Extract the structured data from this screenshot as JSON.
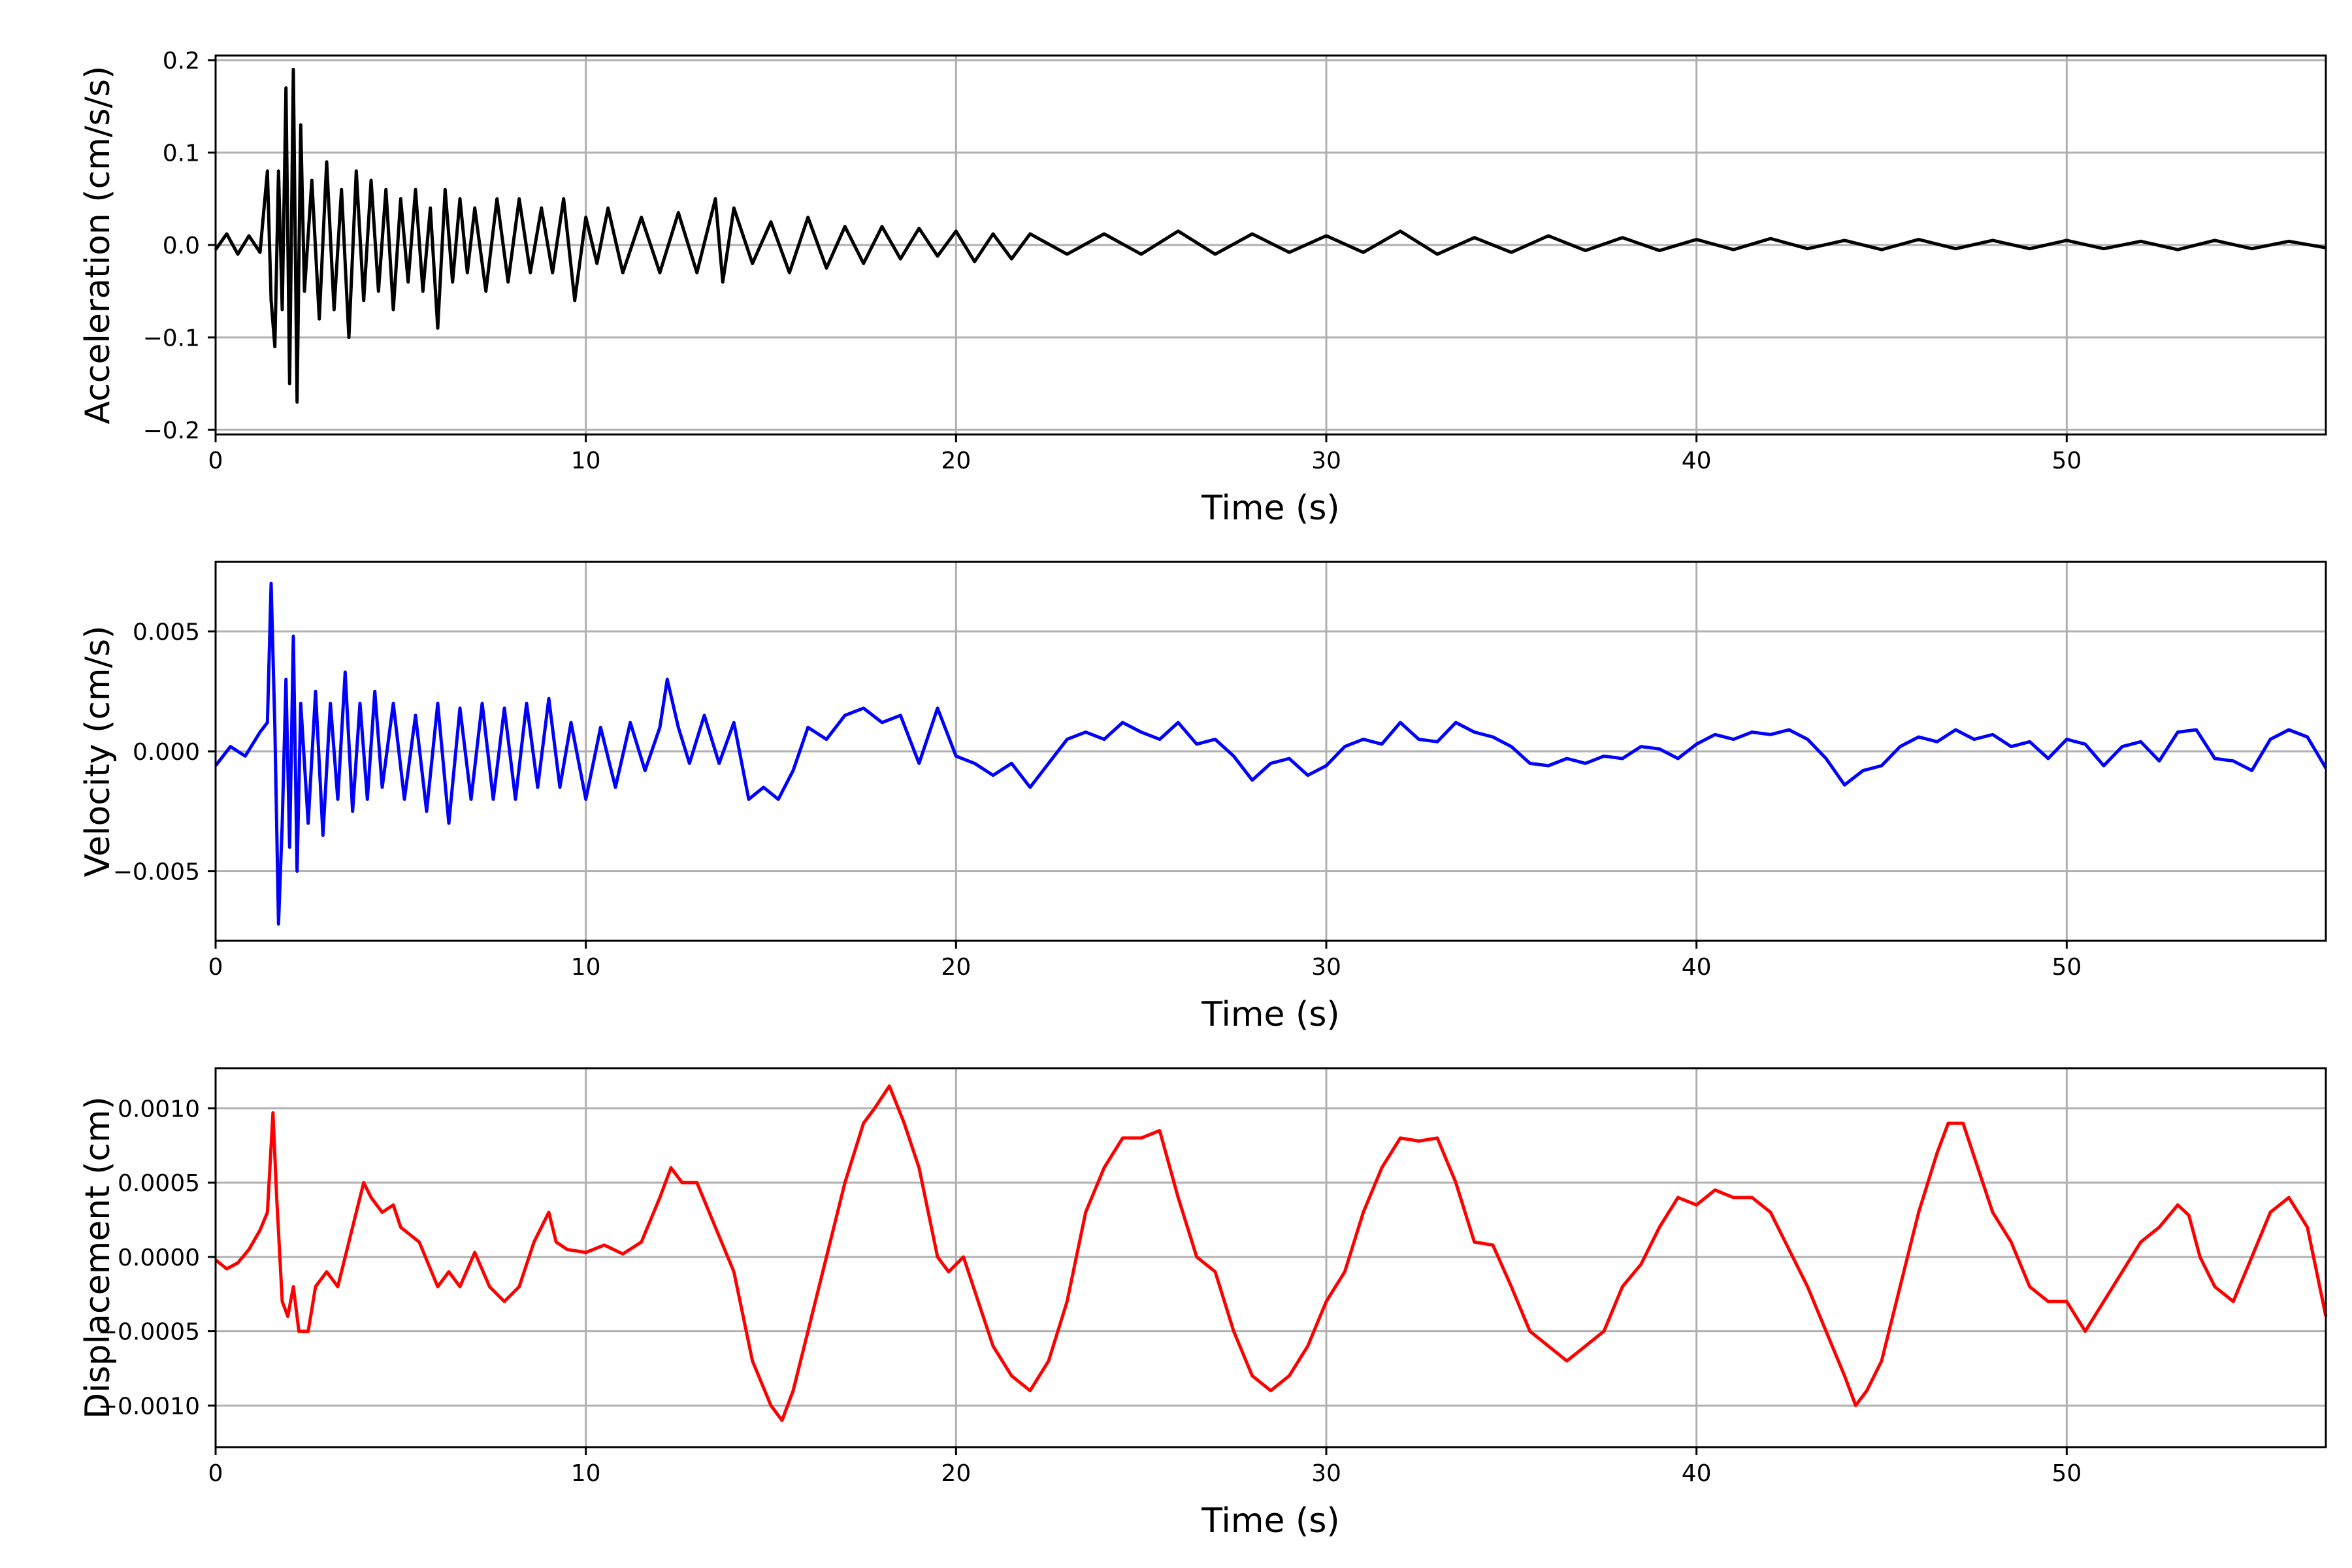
{
  "chart_data": [
    {
      "type": "line",
      "xlabel": "Time (s)",
      "ylabel": "Acceleration (cm/s/s)",
      "xlim": [
        0,
        57
      ],
      "ylim": [
        -0.205,
        0.205
      ],
      "xticks": [
        0,
        10,
        20,
        30,
        40,
        50
      ],
      "xtick_labels": [
        "0",
        "10",
        "20",
        "30",
        "40",
        "50"
      ],
      "yticks": [
        -0.2,
        -0.1,
        0.0,
        0.1,
        0.2
      ],
      "ytick_labels": [
        "−0.2",
        "−0.1",
        "0.0",
        "0.1",
        "0.2"
      ],
      "grid": true,
      "series": [
        {
          "color": "#000000",
          "x": [
            0,
            0.3,
            0.6,
            0.9,
            1.2,
            1.4,
            1.5,
            1.6,
            1.7,
            1.8,
            1.9,
            2.0,
            2.1,
            2.2,
            2.3,
            2.4,
            2.6,
            2.8,
            3.0,
            3.2,
            3.4,
            3.6,
            3.8,
            4.0,
            4.2,
            4.4,
            4.6,
            4.8,
            5.0,
            5.2,
            5.4,
            5.6,
            5.8,
            6.0,
            6.2,
            6.4,
            6.6,
            6.8,
            7.0,
            7.3,
            7.6,
            7.9,
            8.2,
            8.5,
            8.8,
            9.1,
            9.4,
            9.7,
            10.0,
            10.3,
            10.6,
            11.0,
            11.5,
            12.0,
            12.5,
            13.0,
            13.5,
            13.7,
            14.0,
            14.5,
            15.0,
            15.5,
            16.0,
            16.5,
            17.0,
            17.5,
            18.0,
            18.5,
            19.0,
            19.5,
            20.0,
            20.5,
            21.0,
            21.5,
            22.0,
            23.0,
            24.0,
            25.0,
            26.0,
            27.0,
            28.0,
            29.0,
            30.0,
            31.0,
            32.0,
            33.0,
            34.0,
            35.0,
            36.0,
            37.0,
            38.0,
            39.0,
            40.0,
            41.0,
            42.0,
            43.0,
            44.0,
            45.0,
            46.0,
            47.0,
            48.0,
            49.0,
            50.0,
            51.0,
            52.0,
            53.0,
            54.0,
            55.0,
            56.0,
            57.0
          ],
          "y": [
            -0.005,
            0.012,
            -0.01,
            0.01,
            -0.008,
            0.08,
            -0.06,
            -0.11,
            0.08,
            -0.07,
            0.17,
            -0.15,
            0.19,
            -0.17,
            0.13,
            -0.05,
            0.07,
            -0.08,
            0.09,
            -0.07,
            0.06,
            -0.1,
            0.08,
            -0.06,
            0.07,
            -0.05,
            0.06,
            -0.07,
            0.05,
            -0.04,
            0.06,
            -0.05,
            0.04,
            -0.09,
            0.06,
            -0.04,
            0.05,
            -0.03,
            0.04,
            -0.05,
            0.05,
            -0.04,
            0.05,
            -0.03,
            0.04,
            -0.03,
            0.05,
            -0.06,
            0.03,
            -0.02,
            0.04,
            -0.03,
            0.03,
            -0.03,
            0.035,
            -0.03,
            0.05,
            -0.04,
            0.04,
            -0.02,
            0.025,
            -0.03,
            0.03,
            -0.025,
            0.02,
            -0.02,
            0.02,
            -0.015,
            0.018,
            -0.012,
            0.015,
            -0.018,
            0.012,
            -0.015,
            0.012,
            -0.01,
            0.012,
            -0.01,
            0.015,
            -0.01,
            0.012,
            -0.008,
            0.01,
            -0.008,
            0.015,
            -0.01,
            0.008,
            -0.008,
            0.01,
            -0.006,
            0.008,
            -0.006,
            0.006,
            -0.005,
            0.007,
            -0.004,
            0.005,
            -0.005,
            0.006,
            -0.004,
            0.005,
            -0.004,
            0.005,
            -0.004,
            0.004,
            -0.005,
            0.005,
            -0.004,
            0.004,
            -0.003
          ]
        }
      ]
    },
    {
      "type": "line",
      "xlabel": "Time (s)",
      "ylabel": "Velocity (cm/s)",
      "xlim": [
        0,
        57
      ],
      "ylim": [
        -0.0079,
        0.0079
      ],
      "xticks": [
        0,
        10,
        20,
        30,
        40,
        50
      ],
      "xtick_labels": [
        "0",
        "10",
        "20",
        "30",
        "40",
        "50"
      ],
      "yticks": [
        -0.005,
        0.0,
        0.005
      ],
      "ytick_labels": [
        "−0.005",
        "0.000",
        "0.005"
      ],
      "grid": true,
      "series": [
        {
          "color": "#0000ff",
          "x": [
            0,
            0.4,
            0.8,
            1.2,
            1.4,
            1.5,
            1.6,
            1.7,
            1.8,
            1.9,
            2.0,
            2.1,
            2.2,
            2.3,
            2.5,
            2.7,
            2.9,
            3.1,
            3.3,
            3.5,
            3.7,
            3.9,
            4.1,
            4.3,
            4.5,
            4.8,
            5.1,
            5.4,
            5.7,
            6.0,
            6.3,
            6.6,
            6.9,
            7.2,
            7.5,
            7.8,
            8.1,
            8.4,
            8.7,
            9.0,
            9.3,
            9.6,
            10.0,
            10.4,
            10.8,
            11.2,
            11.6,
            12.0,
            12.2,
            12.5,
            12.8,
            13.2,
            13.6,
            14.0,
            14.4,
            14.8,
            15.2,
            15.6,
            16.0,
            16.5,
            17.0,
            17.5,
            18.0,
            18.5,
            19.0,
            19.5,
            20.0,
            20.5,
            21.0,
            21.5,
            22.0,
            22.5,
            23.0,
            23.5,
            24.0,
            24.5,
            25.0,
            25.5,
            26.0,
            26.5,
            27.0,
            27.5,
            28.0,
            28.5,
            29.0,
            29.5,
            30.0,
            30.5,
            31.0,
            31.5,
            32.0,
            32.5,
            33.0,
            33.5,
            34.0,
            34.5,
            35.0,
            35.5,
            36.0,
            36.5,
            37.0,
            37.5,
            38.0,
            38.5,
            39.0,
            39.5,
            40.0,
            40.5,
            41.0,
            41.5,
            42.0,
            42.5,
            43.0,
            43.5,
            44.0,
            44.5,
            45.0,
            45.5,
            46.0,
            46.5,
            47.0,
            47.5,
            48.0,
            48.5,
            49.0,
            49.5,
            50.0,
            50.5,
            51.0,
            51.5,
            52.0,
            52.5,
            53.0,
            53.5,
            54.0,
            54.5,
            55.0,
            55.5,
            56.0,
            56.5,
            57.0
          ],
          "y": [
            -0.0006,
            0.0002,
            -0.0002,
            0.0008,
            0.0012,
            0.007,
            0.001,
            -0.0072,
            -0.003,
            0.003,
            -0.004,
            0.0048,
            -0.005,
            0.002,
            -0.003,
            0.0025,
            -0.0035,
            0.002,
            -0.002,
            0.0033,
            -0.0025,
            0.002,
            -0.002,
            0.0025,
            -0.0015,
            0.002,
            -0.002,
            0.0015,
            -0.0025,
            0.002,
            -0.003,
            0.0018,
            -0.002,
            0.002,
            -0.002,
            0.0018,
            -0.002,
            0.002,
            -0.0015,
            0.0022,
            -0.0015,
            0.0012,
            -0.002,
            0.001,
            -0.0015,
            0.0012,
            -0.0008,
            0.001,
            0.003,
            0.001,
            -0.0005,
            0.0015,
            -0.0005,
            0.0012,
            -0.002,
            -0.0015,
            -0.002,
            -0.0008,
            0.001,
            0.0005,
            0.0015,
            0.0018,
            0.0012,
            0.0015,
            -0.0005,
            0.0018,
            -0.0002,
            -0.0005,
            -0.001,
            -0.0005,
            -0.0015,
            -0.0005,
            0.0005,
            0.0008,
            0.0005,
            0.0012,
            0.0008,
            0.0005,
            0.0012,
            0.0003,
            0.0005,
            -0.0002,
            -0.0012,
            -0.0005,
            -0.0003,
            -0.001,
            -0.0006,
            0.0002,
            0.0005,
            0.0003,
            0.0012,
            0.0005,
            0.0004,
            0.0012,
            0.0008,
            0.0006,
            0.0002,
            -0.0005,
            -0.0006,
            -0.0003,
            -0.0005,
            -0.0002,
            -0.0003,
            0.0002,
            0.0001,
            -0.0003,
            0.0003,
            0.0007,
            0.0005,
            0.0008,
            0.0007,
            0.0009,
            0.0005,
            -0.0003,
            -0.0014,
            -0.0008,
            -0.0006,
            0.0002,
            0.0006,
            0.0004,
            0.0009,
            0.0005,
            0.0007,
            0.0002,
            0.0004,
            -0.0003,
            0.0005,
            0.0003,
            -0.0006,
            0.0002,
            0.0004,
            -0.0004,
            0.0008,
            0.0009,
            -0.0003,
            -0.0004,
            -0.0008,
            0.0005,
            0.0009,
            0.0006,
            -0.0007
          ]
        }
      ]
    },
    {
      "type": "line",
      "xlabel": "Time (s)",
      "ylabel": "Displacement (cm)",
      "xlim": [
        0,
        57
      ],
      "ylim": [
        -0.00128,
        0.00127
      ],
      "xticks": [
        0,
        10,
        20,
        30,
        40,
        50
      ],
      "xtick_labels": [
        "0",
        "10",
        "20",
        "30",
        "40",
        "50"
      ],
      "yticks": [
        -0.001,
        -0.0005,
        0.0,
        0.0005,
        0.001
      ],
      "ytick_labels": [
        "−0.0010",
        "−0.0005",
        "0.0000",
        "0.0005",
        "0.0010"
      ],
      "grid": true,
      "series": [
        {
          "color": "#ff0000",
          "x": [
            0,
            0.3,
            0.6,
            0.9,
            1.2,
            1.4,
            1.55,
            1.65,
            1.8,
            1.95,
            2.1,
            2.25,
            2.5,
            2.7,
            3.0,
            3.3,
            3.6,
            3.8,
            4.0,
            4.2,
            4.5,
            4.8,
            5.0,
            5.5,
            6.0,
            6.3,
            6.6,
            7.0,
            7.4,
            7.8,
            8.2,
            8.6,
            9.0,
            9.2,
            9.5,
            10.0,
            10.5,
            11.0,
            11.5,
            12.0,
            12.3,
            12.6,
            13.0,
            13.5,
            14.0,
            14.5,
            15.0,
            15.3,
            15.6,
            16.0,
            16.5,
            17.0,
            17.5,
            17.8,
            18.2,
            18.6,
            19.0,
            19.5,
            19.8,
            20.2,
            20.6,
            21.0,
            21.5,
            22.0,
            22.5,
            23.0,
            23.5,
            24.0,
            24.5,
            25.0,
            25.5,
            26.0,
            26.5,
            27.0,
            27.5,
            28.0,
            28.5,
            29.0,
            29.5,
            30.0,
            30.5,
            31.0,
            31.5,
            32.0,
            32.5,
            33.0,
            33.5,
            34.0,
            34.5,
            35.0,
            35.5,
            36.0,
            36.5,
            37.0,
            37.5,
            38.0,
            38.5,
            39.0,
            39.5,
            40.0,
            40.5,
            41.0,
            41.5,
            42.0,
            42.5,
            43.0,
            43.5,
            44.0,
            44.3,
            44.6,
            45.0,
            45.5,
            46.0,
            46.5,
            46.8,
            47.2,
            47.6,
            48.0,
            48.5,
            49.0,
            49.5,
            50.0,
            50.5,
            51.0,
            51.5,
            52.0,
            52.5,
            53.0,
            53.3,
            53.6,
            54.0,
            54.5,
            55.0,
            55.5,
            56.0,
            56.5,
            57.0
          ],
          "y": [
            -2e-05,
            -8e-05,
            -4e-05,
            5e-05,
            0.00018,
            0.0003,
            0.00097,
            0.0004,
            -0.0003,
            -0.0004,
            -0.0002,
            -0.0005,
            -0.0005,
            -0.0002,
            -0.0001,
            -0.0002,
            0.0001,
            0.0003,
            0.0005,
            0.0004,
            0.0003,
            0.00035,
            0.0002,
            0.0001,
            -0.0002,
            -0.0001,
            -0.0002,
            3e-05,
            -0.0002,
            -0.0003,
            -0.0002,
            0.0001,
            0.0003,
            0.0001,
            5e-05,
            3e-05,
            8e-05,
            2e-05,
            0.0001,
            0.0004,
            0.0006,
            0.0005,
            0.0005,
            0.0002,
            -0.0001,
            -0.0007,
            -0.001,
            -0.0011,
            -0.0009,
            -0.0005,
            0.0,
            0.0005,
            0.0009,
            0.001,
            0.00115,
            0.0009,
            0.0006,
            0.0,
            -0.0001,
            0.0,
            -0.0003,
            -0.0006,
            -0.0008,
            -0.0009,
            -0.0007,
            -0.0003,
            0.0003,
            0.0006,
            0.0008,
            0.0008,
            0.00085,
            0.0004,
            0.0,
            -0.0001,
            -0.0005,
            -0.0008,
            -0.0009,
            -0.0008,
            -0.0006,
            -0.0003,
            -0.0001,
            0.0003,
            0.0006,
            0.0008,
            0.00078,
            0.0008,
            0.0005,
            0.0001,
            8e-05,
            -0.0002,
            -0.0005,
            -0.0006,
            -0.0007,
            -0.0006,
            -0.0005,
            -0.0002,
            -5e-05,
            0.0002,
            0.0004,
            0.00035,
            0.00045,
            0.0004,
            0.0004,
            0.0003,
            5e-05,
            -0.0002,
            -0.0005,
            -0.0008,
            -0.001,
            -0.0009,
            -0.0007,
            -0.0002,
            0.0003,
            0.0007,
            0.0009,
            0.0009,
            0.0006,
            0.0003,
            0.0001,
            -0.0002,
            -0.0003,
            -0.0003,
            -0.0005,
            -0.0003,
            -0.0001,
            0.0001,
            0.0002,
            0.00035,
            0.00028,
            0.0,
            -0.0002,
            -0.0003,
            0.0,
            0.0003,
            0.0004,
            0.0002,
            -0.0004
          ]
        }
      ]
    }
  ]
}
